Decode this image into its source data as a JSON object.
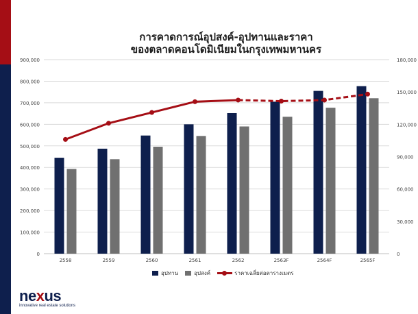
{
  "colors": {
    "demand_supply_primary": "#0e1f4d",
    "demand": "#707070",
    "price": "#a50e15",
    "accent_red": "#a50e15"
  },
  "logo": {
    "word_a": "ne",
    "word_x": "x",
    "word_b": "us",
    "tagline": "innovative real estate solutions"
  },
  "chart_data": {
    "type": "bar",
    "title_line1": "การคาดการณ์อุปสงค์-อุปทานและราคา",
    "title_line2": "ของตลาดคอนโดมิเนียมในกรุงเทพมหานคร",
    "categories": [
      "2558",
      "2559",
      "2560",
      "2561",
      "2562",
      "2563F",
      "2564F",
      "2565F"
    ],
    "series": [
      {
        "name": "อุปทาน",
        "type": "bar",
        "axis": "left",
        "values": [
          445000,
          487000,
          548000,
          600000,
          652000,
          705000,
          755000,
          777000
        ]
      },
      {
        "name": "อุปสงค์",
        "type": "bar",
        "axis": "left",
        "values": [
          393000,
          438000,
          496000,
          546000,
          590000,
          635000,
          677000,
          721000
        ]
      },
      {
        "name": "ราคาเฉลี่ยต่อตารางเมตร",
        "type": "line",
        "axis": "right",
        "values": [
          106000,
          121000,
          131000,
          141000,
          142500,
          141500,
          142500,
          148000
        ]
      }
    ],
    "ylim_left": [
      0,
      900000
    ],
    "ylim_right": [
      0,
      180000
    ],
    "yticks_left": [
      "0",
      "100,000",
      "200,000",
      "300,000",
      "400,000",
      "500,000",
      "600,000",
      "700,000",
      "800,000",
      "900,000"
    ],
    "yticks_right": [
      "0",
      "30,000",
      "60,000",
      "90,000",
      "120,000",
      "150,000",
      "180,000"
    ],
    "gridlines": true,
    "legend_position": "bottom",
    "line_dashed_from_index": 4
  }
}
